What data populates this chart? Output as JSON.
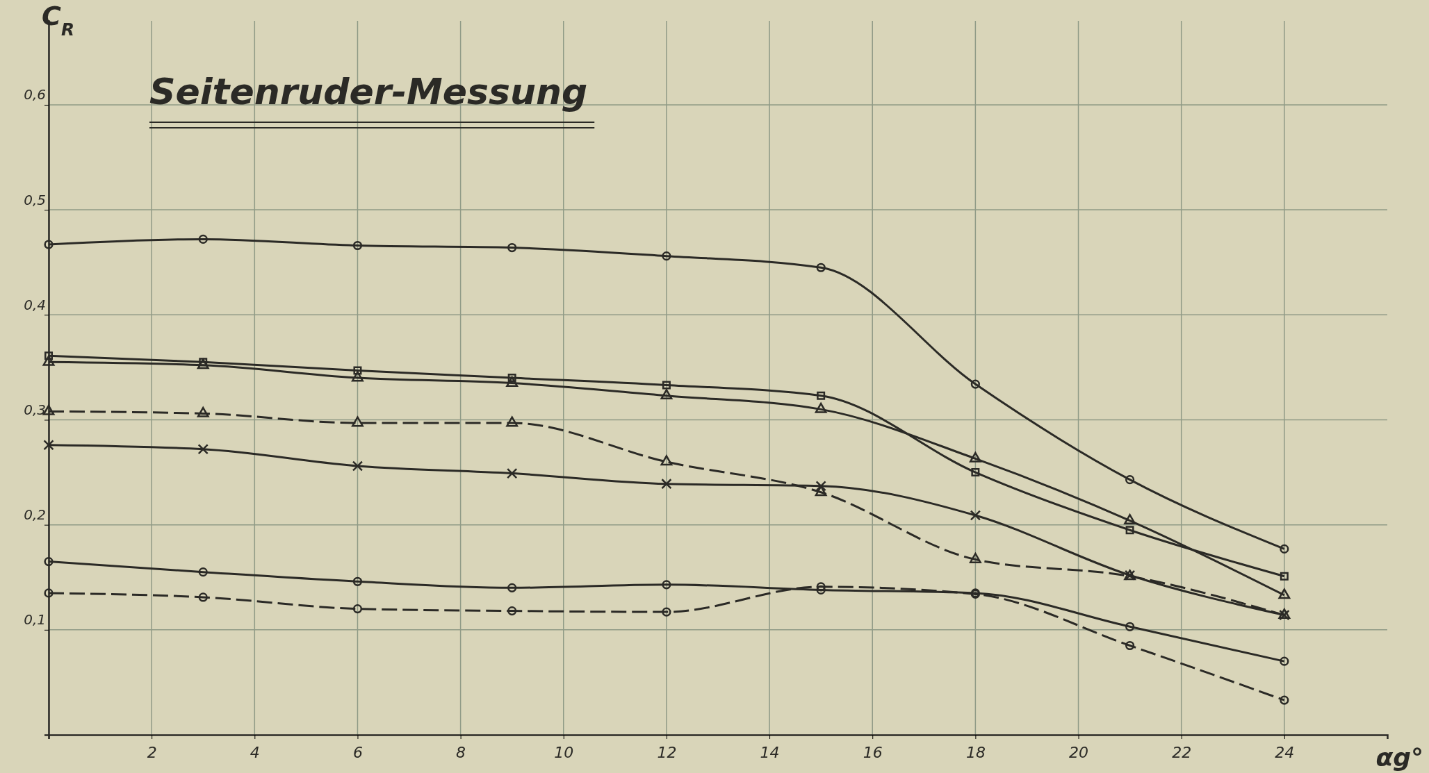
{
  "chart_data": {
    "type": "line",
    "title": "Seitenruder-Messung",
    "xlabel": "αg°",
    "ylabel": "C$_{R}$",
    "x": [
      0,
      3,
      6,
      9,
      12,
      15,
      18,
      21,
      24
    ],
    "xlim": [
      0,
      26
    ],
    "xticks": [
      {
        "value": 0,
        "label": null
      },
      2,
      4,
      6,
      8,
      10,
      12,
      14,
      16,
      18,
      20,
      22,
      24
    ],
    "ylim": [
      0,
      0.68
    ],
    "yticks": [
      {
        "value": 0.1,
        "label": "0,1"
      },
      {
        "value": 0.2,
        "label": "0,2"
      },
      {
        "value": 0.3,
        "label": "0,3"
      },
      {
        "value": 0.4,
        "label": "0,4"
      },
      {
        "value": 0.5,
        "label": "0,5"
      },
      {
        "value": 0.6,
        "label": "0,6"
      }
    ],
    "grid": true,
    "series": [
      {
        "color": "#2b2a26",
        "marker": "circle",
        "line_style": "solid",
        "values": [
          0.467,
          0.472,
          0.466,
          0.464,
          0.456,
          0.445,
          0.334,
          0.243,
          0.177
        ]
      },
      {
        "color": "#2b2a26",
        "marker": "square",
        "line_style": "solid",
        "values": [
          0.361,
          0.355,
          0.347,
          0.34,
          0.333,
          0.323,
          0.25,
          0.195,
          0.151
        ]
      },
      {
        "color": "#2b2a26",
        "marker": "triangle",
        "line_style": "solid",
        "values": [
          0.355,
          0.352,
          0.34,
          0.335,
          0.323,
          0.31,
          0.263,
          0.204,
          0.133
        ]
      },
      {
        "color": "#2b2a26",
        "marker": "triangle",
        "line_style": "dashed",
        "values": [
          0.308,
          0.306,
          0.297,
          0.297,
          0.26,
          0.231,
          0.167,
          0.151,
          0.114
        ]
      },
      {
        "color": "#2b2a26",
        "marker": "cross",
        "line_style": "solid",
        "values": [
          0.276,
          0.272,
          0.256,
          0.249,
          0.239,
          0.237,
          0.209,
          0.152,
          0.114
        ]
      },
      {
        "color": "#2b2a26",
        "marker": "circle",
        "line_style": "solid",
        "values": [
          0.165,
          0.155,
          0.146,
          0.14,
          0.143,
          0.138,
          0.135,
          0.103,
          0.07
        ]
      },
      {
        "color": "#2b2a26",
        "marker": "circle",
        "line_style": "dashed",
        "values": [
          0.135,
          0.131,
          0.12,
          0.118,
          0.117,
          0.141,
          0.134,
          0.085,
          0.033
        ]
      }
    ]
  }
}
